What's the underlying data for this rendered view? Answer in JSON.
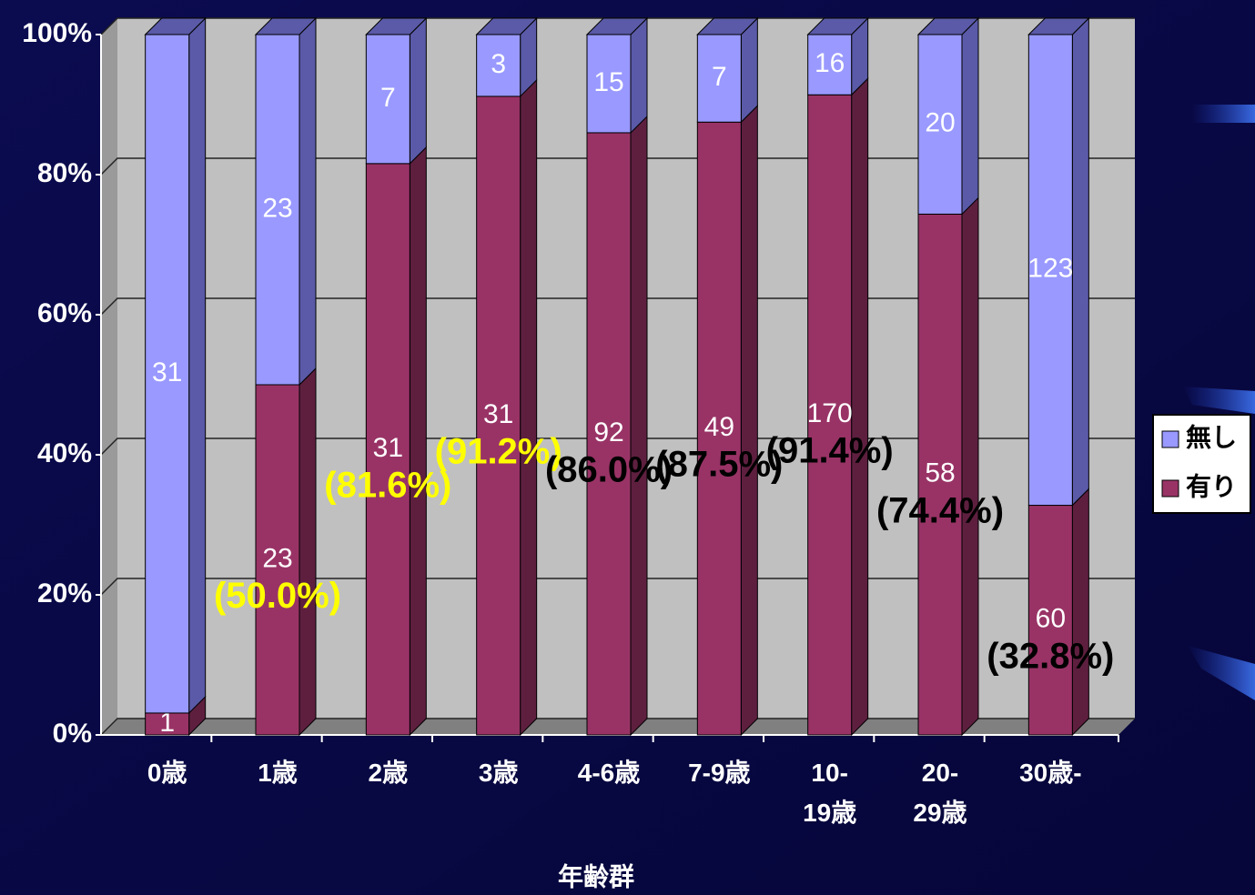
{
  "chart_data": {
    "type": "stacked_bar_percent",
    "categories": [
      "0歳",
      "1歳",
      "2歳",
      "3歳",
      "4-6歳",
      "7-9歳",
      "10-\n19歳",
      "20-\n29歳",
      "30歳-"
    ],
    "x_label": "年齢群",
    "series": [
      {
        "name": "有り",
        "color": "#993366",
        "values": [
          1,
          23,
          31,
          31,
          92,
          49,
          170,
          58,
          60
        ]
      },
      {
        "name": "無し",
        "color": "#9999ff",
        "values": [
          31,
          23,
          7,
          3,
          15,
          7,
          16,
          20,
          123
        ]
      }
    ],
    "percent_labels": {
      "values": [
        null,
        50.0,
        81.6,
        91.2,
        86.0,
        87.5,
        91.4,
        74.4,
        32.8
      ],
      "value_labels": [
        null,
        "(50.0%)",
        "(81.6%)",
        "(91.2%)",
        "(86.0%)",
        "(87.5%)",
        "(91.4%)",
        "(74.4%)",
        "(32.8%)"
      ],
      "colors": [
        null,
        "#ffff00",
        "#ffff00",
        "#ffff00",
        "#000000",
        "#000000",
        "#000000",
        "#000000",
        "#000000"
      ]
    },
    "ylim": [
      0,
      100
    ],
    "yticks": [
      {
        "value": 0,
        "label": "0%"
      },
      {
        "value": 20,
        "label": "20%"
      },
      {
        "value": 40,
        "label": "40%"
      },
      {
        "value": 60,
        "label": "60%"
      },
      {
        "value": 80,
        "label": "80%"
      },
      {
        "value": 100,
        "label": "100%"
      }
    ],
    "grid": true,
    "legend": "right"
  }
}
